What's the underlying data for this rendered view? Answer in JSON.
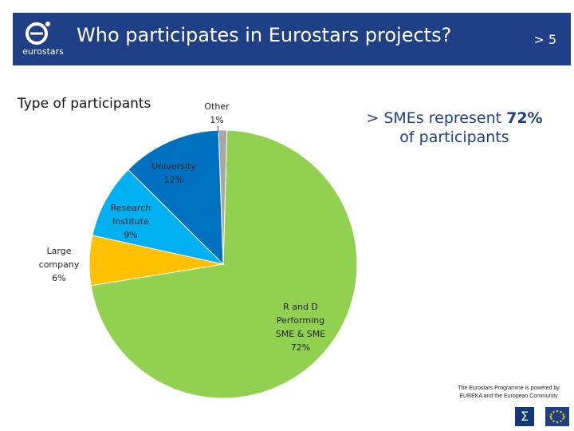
{
  "header": {
    "logo_text": "eurostars",
    "title": "Who participates in Eurostars projects?",
    "page": "> 5"
  },
  "subtitle": "Type of participants",
  "highlight": {
    "prefix": "> SMEs represent",
    "value": "72%",
    "suffix": "of participants"
  },
  "footer": {
    "line1": "The Eurostars Programme is powered by",
    "line2": "EUREKA and the European Community"
  },
  "chart_data": {
    "type": "pie",
    "slices": [
      {
        "label": "R and D Performing SME & SME",
        "value": 72,
        "label_lines": [
          "R and D",
          "Performing",
          "SME & SME",
          "72%"
        ],
        "color": "#92d050"
      },
      {
        "label": "Large company",
        "value": 6,
        "label_lines": [
          "Large",
          "company",
          "6%"
        ],
        "color": "#ffc000"
      },
      {
        "label": "Research Institute",
        "value": 9,
        "label_lines": [
          "Research",
          "Institute",
          "9%"
        ],
        "color": "#00b0f0"
      },
      {
        "label": "University",
        "value": 12,
        "label_lines": [
          "University",
          "12%"
        ],
        "color": "#0070c0"
      },
      {
        "label": "Other",
        "value": 1,
        "label_lines": [
          "Other",
          "1%"
        ],
        "color": "#a6a6a6"
      }
    ]
  }
}
